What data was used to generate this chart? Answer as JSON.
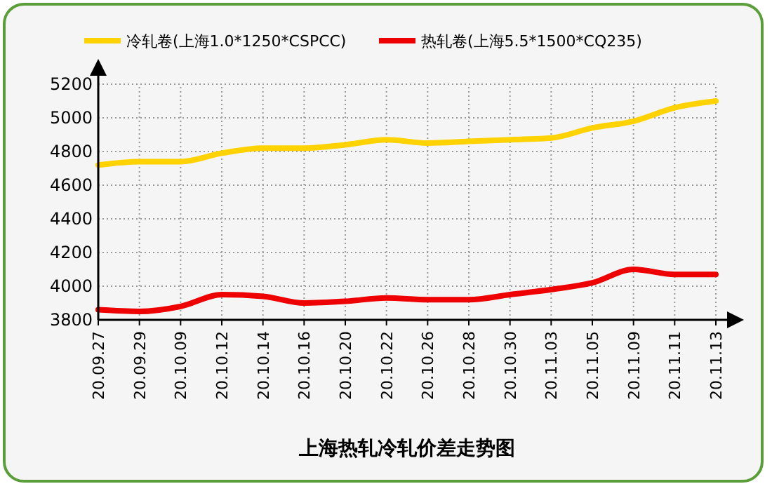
{
  "chart_data": {
    "type": "line",
    "title": "上海热轧冷轧价差走势图",
    "categories": [
      "20.09.27",
      "20.09.29",
      "20.10.09",
      "20.10.12",
      "20.10.14",
      "20.10.16",
      "20.10.20",
      "20.10.22",
      "20.10.26",
      "20.10.28",
      "20.10.30",
      "20.11.03",
      "20.11.05",
      "20.11.09",
      "20.11.11",
      "20.11.13"
    ],
    "series": [
      {
        "name": "冷轧卷(上海1.0*1250*CSPCC)",
        "color": "#ffd200",
        "values": [
          4720,
          4740,
          4740,
          4790,
          4820,
          4820,
          4840,
          4870,
          4850,
          4860,
          4870,
          4880,
          4940,
          4980,
          5060,
          5100
        ]
      },
      {
        "name": "热轧卷(上海5.5*1500*CQ235)",
        "color": "#ee0000",
        "values": [
          3860,
          3850,
          3880,
          3950,
          3940,
          3900,
          3910,
          3930,
          3920,
          3920,
          3950,
          3980,
          4020,
          4100,
          4070,
          4070
        ]
      }
    ],
    "ylim": [
      3800,
      5200
    ],
    "yticks": [
      3800,
      4000,
      4200,
      4400,
      4600,
      4800,
      5000,
      5200
    ],
    "grid": true,
    "legend": "top",
    "marker": "none",
    "line_style": "solid"
  }
}
